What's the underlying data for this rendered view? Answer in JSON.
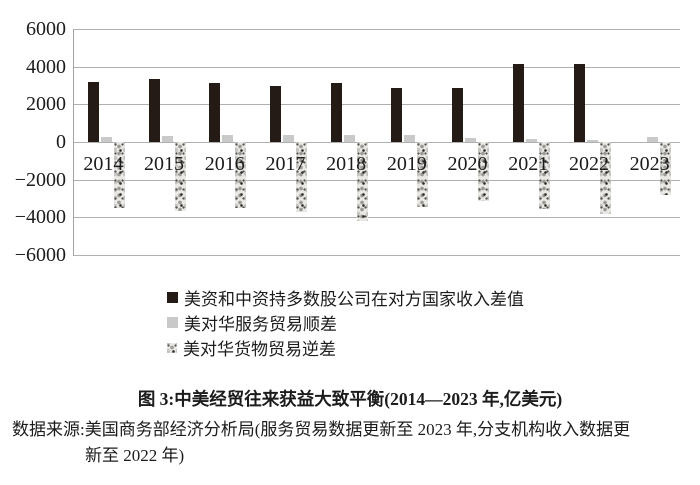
{
  "figure": {
    "title": "图 3:中美经贸往来获益大致平衡(2014—2023 年,亿美元)",
    "source_line1": "数据来源:美国商务部经济分析局(服务贸易数据更新至 2023 年,分支机构收入数据更",
    "source_line2": "新至 2022 年)"
  },
  "chart_data": {
    "type": "bar",
    "categories": [
      "2014",
      "2015",
      "2016",
      "2017",
      "2018",
      "2019",
      "2020",
      "2021",
      "2022",
      "2023"
    ],
    "series": [
      {
        "key": "income-diff",
        "name": "美资和中资持多数股公司在对方国家收入差值",
        "style": "solid-black",
        "color": "#241b17",
        "values": [
          3180,
          3340,
          3110,
          2960,
          3110,
          2850,
          2860,
          4120,
          4170,
          null
        ]
      },
      {
        "key": "services-surplus",
        "name": "美对华服务贸易顺差",
        "style": "solid-gray",
        "color": "#c9c9c9",
        "values": [
          260,
          300,
          370,
          390,
          400,
          360,
          230,
          160,
          100,
          250
        ]
      },
      {
        "key": "goods-deficit",
        "name": "美对华货物贸易逆差",
        "style": "speckled",
        "color": "#eae8e5",
        "values": [
          -3480,
          -3660,
          -3510,
          -3730,
          -4180,
          -3450,
          -3150,
          -3550,
          -3830,
          -2800
        ]
      }
    ],
    "ylim": [
      -6000,
      6000
    ],
    "yticks": [
      6000,
      4000,
      2000,
      0,
      -2000,
      -4000,
      -6000
    ],
    "ytick_labels": [
      "6000",
      "4000",
      "2000",
      "0",
      "−2000",
      "−4000",
      "−6000"
    ],
    "xlabel": "",
    "ylabel": "",
    "grid": true,
    "legend_position": "below-left"
  },
  "colors": {
    "background": "#ffffff",
    "gridline": "#b0b0b0",
    "axis": "#a3a3a3",
    "text": "#1c1c1c"
  }
}
